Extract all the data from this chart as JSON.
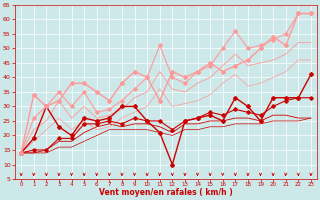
{
  "background_color": "#cce8e8",
  "grid_color": "#ffffff",
  "xlabel": "Vent moyen/en rafales ( km/h )",
  "xlabel_color": "#cc0000",
  "tick_color": "#cc0000",
  "xlim": [
    -0.5,
    23.5
  ],
  "ylim": [
    5,
    65
  ],
  "yticks": [
    5,
    10,
    15,
    20,
    25,
    30,
    35,
    40,
    45,
    50,
    55,
    60,
    65
  ],
  "xticks": [
    0,
    1,
    2,
    3,
    4,
    5,
    6,
    7,
    8,
    9,
    10,
    11,
    12,
    13,
    14,
    15,
    16,
    17,
    18,
    19,
    20,
    21,
    22,
    23
  ],
  "lines": [
    {
      "x": [
        0,
        1,
        2,
        3,
        4,
        5,
        6,
        7,
        8,
        9,
        10,
        11,
        12,
        13,
        14,
        15,
        16,
        17,
        18,
        19,
        20,
        21,
        22,
        23
      ],
      "y": [
        14,
        19,
        30,
        23,
        20,
        26,
        25,
        26,
        30,
        30,
        25,
        21,
        10,
        25,
        26,
        27,
        25,
        33,
        30,
        25,
        33,
        33,
        33,
        41
      ],
      "color": "#cc0000",
      "lw": 1.0,
      "marker": "D",
      "ms": 2.0
    },
    {
      "x": [
        0,
        1,
        2,
        3,
        4,
        5,
        6,
        7,
        8,
        9,
        10,
        11,
        12,
        13,
        14,
        15,
        16,
        17,
        18,
        19,
        20,
        21,
        22,
        23
      ],
      "y": [
        14,
        15,
        15,
        19,
        19,
        24,
        24,
        25,
        24,
        26,
        25,
        25,
        22,
        25,
        26,
        28,
        27,
        29,
        28,
        27,
        30,
        32,
        33,
        33
      ],
      "color": "#cc0000",
      "lw": 0.8,
      "marker": "D",
      "ms": 1.8
    },
    {
      "x": [
        0,
        1,
        2,
        3,
        4,
        5,
        6,
        7,
        8,
        9,
        10,
        11,
        12,
        13,
        14,
        15,
        16,
        17,
        18,
        19,
        20,
        21,
        22,
        23
      ],
      "y": [
        14,
        14,
        15,
        18,
        18,
        21,
        23,
        24,
        23,
        24,
        24,
        23,
        21,
        24,
        24,
        25,
        25,
        26,
        26,
        25,
        27,
        27,
        26,
        26
      ],
      "color": "#cc0000",
      "lw": 0.6,
      "marker": null,
      "ms": 0
    },
    {
      "x": [
        0,
        1,
        2,
        3,
        4,
        5,
        6,
        7,
        8,
        9,
        10,
        11,
        12,
        13,
        14,
        15,
        16,
        17,
        18,
        19,
        20,
        21,
        22,
        23
      ],
      "y": [
        14,
        14,
        14,
        16,
        16,
        18,
        20,
        22,
        22,
        22,
        22,
        21,
        20,
        22,
        22,
        23,
        23,
        24,
        24,
        24,
        25,
        25,
        25,
        26
      ],
      "color": "#cc0000",
      "lw": 0.5,
      "marker": null,
      "ms": 0
    },
    {
      "x": [
        0,
        1,
        2,
        3,
        4,
        5,
        6,
        7,
        8,
        9,
        10,
        11,
        12,
        13,
        14,
        15,
        16,
        17,
        18,
        19,
        20,
        21,
        22,
        23
      ],
      "y": [
        14,
        34,
        30,
        32,
        38,
        38,
        35,
        32,
        38,
        42,
        40,
        32,
        42,
        40,
        42,
        45,
        42,
        44,
        46,
        50,
        54,
        51,
        62,
        62
      ],
      "color": "#ff9999",
      "lw": 1.0,
      "marker": "D",
      "ms": 2.0
    },
    {
      "x": [
        0,
        1,
        2,
        3,
        4,
        5,
        6,
        7,
        8,
        9,
        10,
        11,
        12,
        13,
        14,
        15,
        16,
        17,
        18,
        19,
        20,
        21,
        22,
        23
      ],
      "y": [
        14,
        26,
        30,
        35,
        30,
        35,
        28,
        29,
        32,
        36,
        40,
        51,
        40,
        38,
        42,
        44,
        50,
        56,
        50,
        51,
        53,
        55,
        62,
        62
      ],
      "color": "#ff9999",
      "lw": 0.8,
      "marker": "D",
      "ms": 1.8
    },
    {
      "x": [
        0,
        1,
        2,
        3,
        4,
        5,
        6,
        7,
        8,
        9,
        10,
        11,
        12,
        13,
        14,
        15,
        16,
        17,
        18,
        19,
        20,
        21,
        22,
        23
      ],
      "y": [
        14,
        22,
        25,
        32,
        26,
        30,
        26,
        27,
        29,
        33,
        35,
        42,
        36,
        35,
        38,
        40,
        44,
        48,
        44,
        45,
        46,
        48,
        52,
        52
      ],
      "color": "#ff9999",
      "lw": 0.6,
      "marker": null,
      "ms": 0
    },
    {
      "x": [
        0,
        1,
        2,
        3,
        4,
        5,
        6,
        7,
        8,
        9,
        10,
        11,
        12,
        13,
        14,
        15,
        16,
        17,
        18,
        19,
        20,
        21,
        22,
        23
      ],
      "y": [
        14,
        18,
        22,
        26,
        22,
        25,
        22,
        23,
        26,
        28,
        30,
        36,
        30,
        31,
        32,
        34,
        38,
        41,
        37,
        38,
        40,
        42,
        46,
        46
      ],
      "color": "#ff9999",
      "lw": 0.5,
      "marker": null,
      "ms": 0
    }
  ],
  "arrow_color": "#cc0000",
  "xlabel_fontsize": 5.5,
  "tick_fontsize_x": 4.0,
  "tick_fontsize_y": 4.5
}
